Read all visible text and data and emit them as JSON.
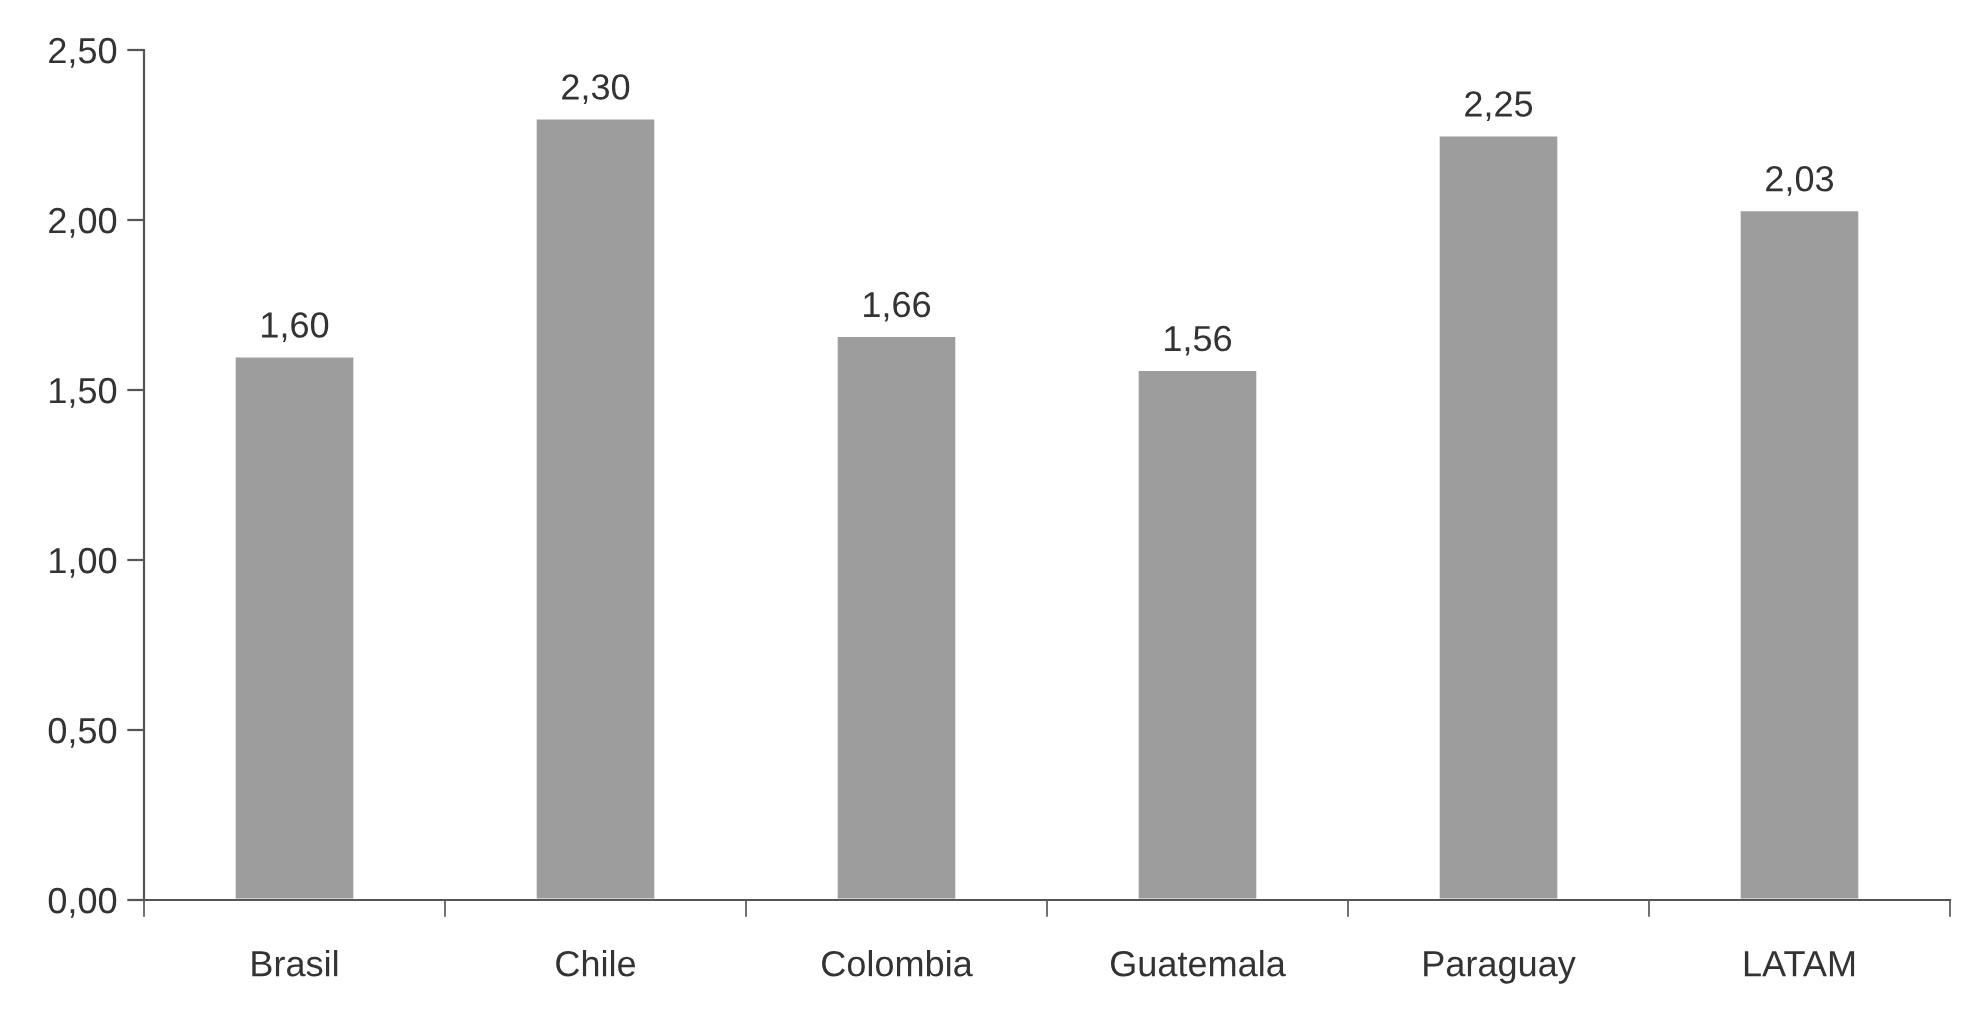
{
  "chart_data": {
    "type": "bar",
    "categories": [
      "Brasil",
      "Chile",
      "Colombia",
      "Guatemala",
      "Paraguay",
      "LATAM"
    ],
    "values": [
      1.6,
      2.3,
      1.66,
      1.56,
      2.25,
      2.03
    ],
    "value_labels": [
      "1,60",
      "2,30",
      "1,66",
      "1,56",
      "2,25",
      "2,03"
    ],
    "color": "#9d9d9e",
    "ylim": [
      0,
      2.5
    ],
    "yticks": [
      {
        "value": 0,
        "label": "0,00"
      },
      {
        "value": 0.5,
        "label": "0,50"
      },
      {
        "value": 1.0,
        "label": "1,00"
      },
      {
        "value": 1.5,
        "label": "1,50"
      },
      {
        "value": 2.0,
        "label": "2,00"
      },
      {
        "value": 2.5,
        "label": "2,50"
      }
    ],
    "grid": false,
    "legend": false
  }
}
